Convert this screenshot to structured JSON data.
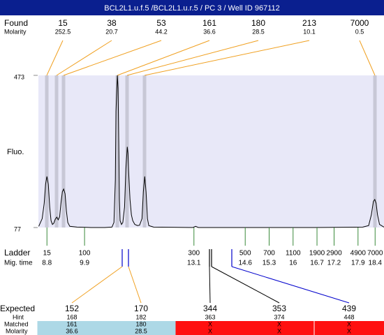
{
  "header": {
    "title": "BCL2L1.u.f.5 /BCL2L1.u.r.5 / PC 3 / Well ID 967112"
  },
  "found": {
    "label": "Found",
    "molarity_label": "Molarity",
    "sizes": [
      15,
      38,
      53,
      161,
      180,
      213,
      7000
    ],
    "molarity": [
      252.5,
      20.7,
      44.2,
      36.6,
      28.5,
      10.1,
      0.5
    ]
  },
  "chart_data": {
    "type": "line",
    "y_label": "Fluo.",
    "color": "#000000",
    "xlim": [
      8.55,
      18.66
    ],
    "ylim": [
      77,
      473
    ],
    "yticks": [
      77,
      473
    ],
    "x": [
      8.56,
      8.66,
      8.72,
      8.76,
      8.8,
      8.84,
      8.88,
      8.92,
      8.96,
      9.0,
      9.04,
      9.09,
      9.13,
      9.17,
      9.21,
      9.25,
      9.29,
      9.33,
      9.37,
      9.41,
      9.47,
      9.68,
      10.09,
      10.49,
      10.7,
      10.76,
      10.8,
      10.82,
      10.86,
      10.88,
      10.9,
      10.92,
      10.94,
      10.98,
      11.02,
      11.07,
      11.11,
      11.15,
      11.17,
      11.19,
      11.23,
      11.27,
      11.31,
      11.37,
      11.45,
      11.51,
      11.58,
      11.62,
      11.66,
      11.7,
      11.74,
      11.78,
      11.92,
      13.07,
      13.15,
      13.23,
      14.58,
      16.62,
      18.04,
      18.21,
      18.29,
      18.35,
      18.39,
      18.43,
      18.47,
      18.53,
      18.66
    ],
    "values": [
      80,
      100,
      140,
      190,
      210,
      190,
      130,
      95,
      85,
      88,
      98,
      104,
      97,
      105,
      140,
      170,
      177,
      165,
      120,
      90,
      80,
      78,
      77,
      77,
      78,
      90,
      200,
      380,
      473,
      440,
      300,
      150,
      95,
      85,
      90,
      130,
      230,
      287,
      270,
      220,
      150,
      110,
      95,
      85,
      82,
      83,
      100,
      170,
      210,
      170,
      100,
      82,
      78,
      77,
      80,
      77,
      77,
      77,
      78,
      82,
      110,
      145,
      150,
      140,
      110,
      85,
      78
    ]
  },
  "ladder": {
    "label": "Ladder",
    "time_label": "Mig. time",
    "sizes": [
      15,
      100,
      300,
      500,
      700,
      1100,
      1900,
      2900,
      4900,
      7000
    ],
    "times": [
      8.8,
      9.9,
      13.1,
      14.6,
      15.3,
      16,
      16.7,
      17.2,
      17.9,
      18.4
    ]
  },
  "expected": {
    "expected_label": "Expected",
    "hint_label": "Hint",
    "matched_label": "Matched",
    "molarity_label": "Molarity",
    "expected": [
      152,
      170,
      344,
      353,
      439
    ],
    "hint": [
      168,
      182,
      363,
      374,
      448
    ],
    "matched": [
      161,
      180,
      "X",
      "X",
      "X"
    ],
    "molarity": [
      36.6,
      28.5,
      "X",
      "X",
      "X"
    ]
  }
}
